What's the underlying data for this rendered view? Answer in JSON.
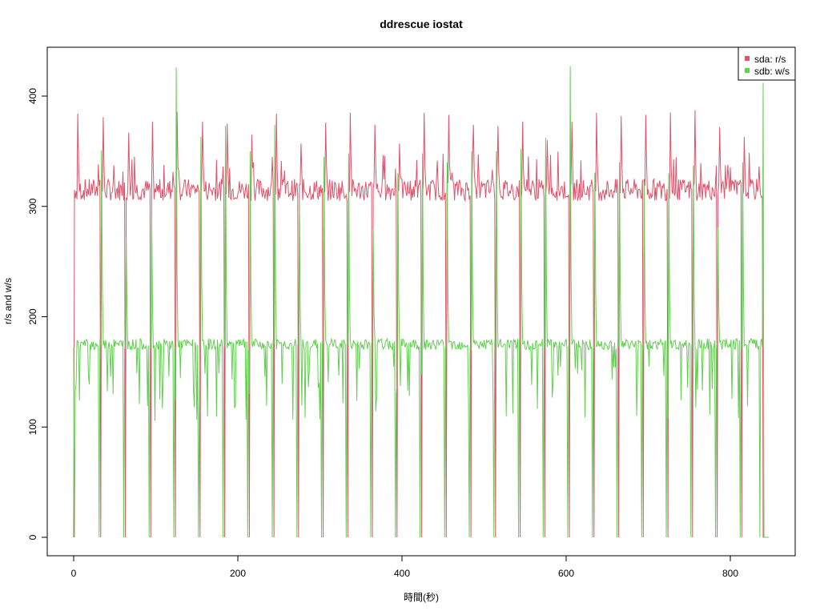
{
  "chart_data": {
    "type": "line",
    "title": "ddrescue iostat",
    "xlabel": "時間(秒)",
    "ylabel": "r/s and w/s",
    "xlim": [
      0,
      880
    ],
    "ylim": [
      0,
      428
    ],
    "xticks": [
      0,
      200,
      400,
      600,
      800
    ],
    "yticks": [
      0,
      100,
      200,
      300,
      400
    ],
    "grid": false,
    "legend_position": "top-right",
    "series": [
      {
        "name": "sda: r/s",
        "color": "#DF536B",
        "baseline": 315,
        "peaks": [
          {
            "x": 5,
            "y": 384
          },
          {
            "x": 36,
            "y": 381
          },
          {
            "x": 67,
            "y": 367
          },
          {
            "x": 96,
            "y": 377
          },
          {
            "x": 126,
            "y": 386
          },
          {
            "x": 157,
            "y": 377
          },
          {
            "x": 187,
            "y": 375
          },
          {
            "x": 217,
            "y": 365
          },
          {
            "x": 247,
            "y": 384
          },
          {
            "x": 277,
            "y": 357
          },
          {
            "x": 307,
            "y": 376
          },
          {
            "x": 337,
            "y": 385
          },
          {
            "x": 367,
            "y": 374
          },
          {
            "x": 397,
            "y": 357
          },
          {
            "x": 427,
            "y": 385
          },
          {
            "x": 457,
            "y": 383
          },
          {
            "x": 487,
            "y": 374
          },
          {
            "x": 517,
            "y": 373
          },
          {
            "x": 547,
            "y": 377
          },
          {
            "x": 577,
            "y": 360
          },
          {
            "x": 607,
            "y": 377
          },
          {
            "x": 637,
            "y": 385
          },
          {
            "x": 667,
            "y": 382
          },
          {
            "x": 697,
            "y": 383
          },
          {
            "x": 727,
            "y": 385
          },
          {
            "x": 757,
            "y": 387
          },
          {
            "x": 787,
            "y": 372
          },
          {
            "x": 817,
            "y": 363
          }
        ],
        "drops": [
          33,
          63,
          94,
          124,
          154,
          184,
          214,
          244,
          274,
          304,
          334,
          364,
          394,
          424,
          454,
          484,
          514,
          544,
          574,
          604,
          634,
          664,
          694,
          724,
          754,
          784,
          814,
          840
        ]
      },
      {
        "name": "sdb: w/s",
        "color": "#61D04F",
        "baseline": 175,
        "peaks": [
          {
            "x": 34,
            "y": 351
          },
          {
            "x": 64,
            "y": 272
          },
          {
            "x": 95,
            "y": 292
          },
          {
            "x": 125,
            "y": 426
          },
          {
            "x": 155,
            "y": 363
          },
          {
            "x": 185,
            "y": 373
          },
          {
            "x": 215,
            "y": 350
          },
          {
            "x": 245,
            "y": 374
          },
          {
            "x": 275,
            "y": 305
          },
          {
            "x": 305,
            "y": 345
          },
          {
            "x": 335,
            "y": 348
          },
          {
            "x": 365,
            "y": 280
          },
          {
            "x": 395,
            "y": 330
          },
          {
            "x": 425,
            "y": 348
          },
          {
            "x": 455,
            "y": 340
          },
          {
            "x": 485,
            "y": 350
          },
          {
            "x": 515,
            "y": 350
          },
          {
            "x": 545,
            "y": 352
          },
          {
            "x": 575,
            "y": 362
          },
          {
            "x": 605,
            "y": 427
          },
          {
            "x": 635,
            "y": 330
          },
          {
            "x": 665,
            "y": 340
          },
          {
            "x": 695,
            "y": 322
          },
          {
            "x": 725,
            "y": 330
          },
          {
            "x": 755,
            "y": 337
          },
          {
            "x": 785,
            "y": 281
          },
          {
            "x": 815,
            "y": 340
          },
          {
            "x": 840,
            "y": 412
          }
        ],
        "drops": [
          1,
          31,
          61,
          92,
          122,
          152,
          182,
          212,
          242,
          272,
          302,
          332,
          362,
          392,
          422,
          452,
          482,
          512,
          542,
          572,
          602,
          632,
          662,
          692,
          722,
          752,
          782,
          812,
          836
        ]
      }
    ]
  }
}
